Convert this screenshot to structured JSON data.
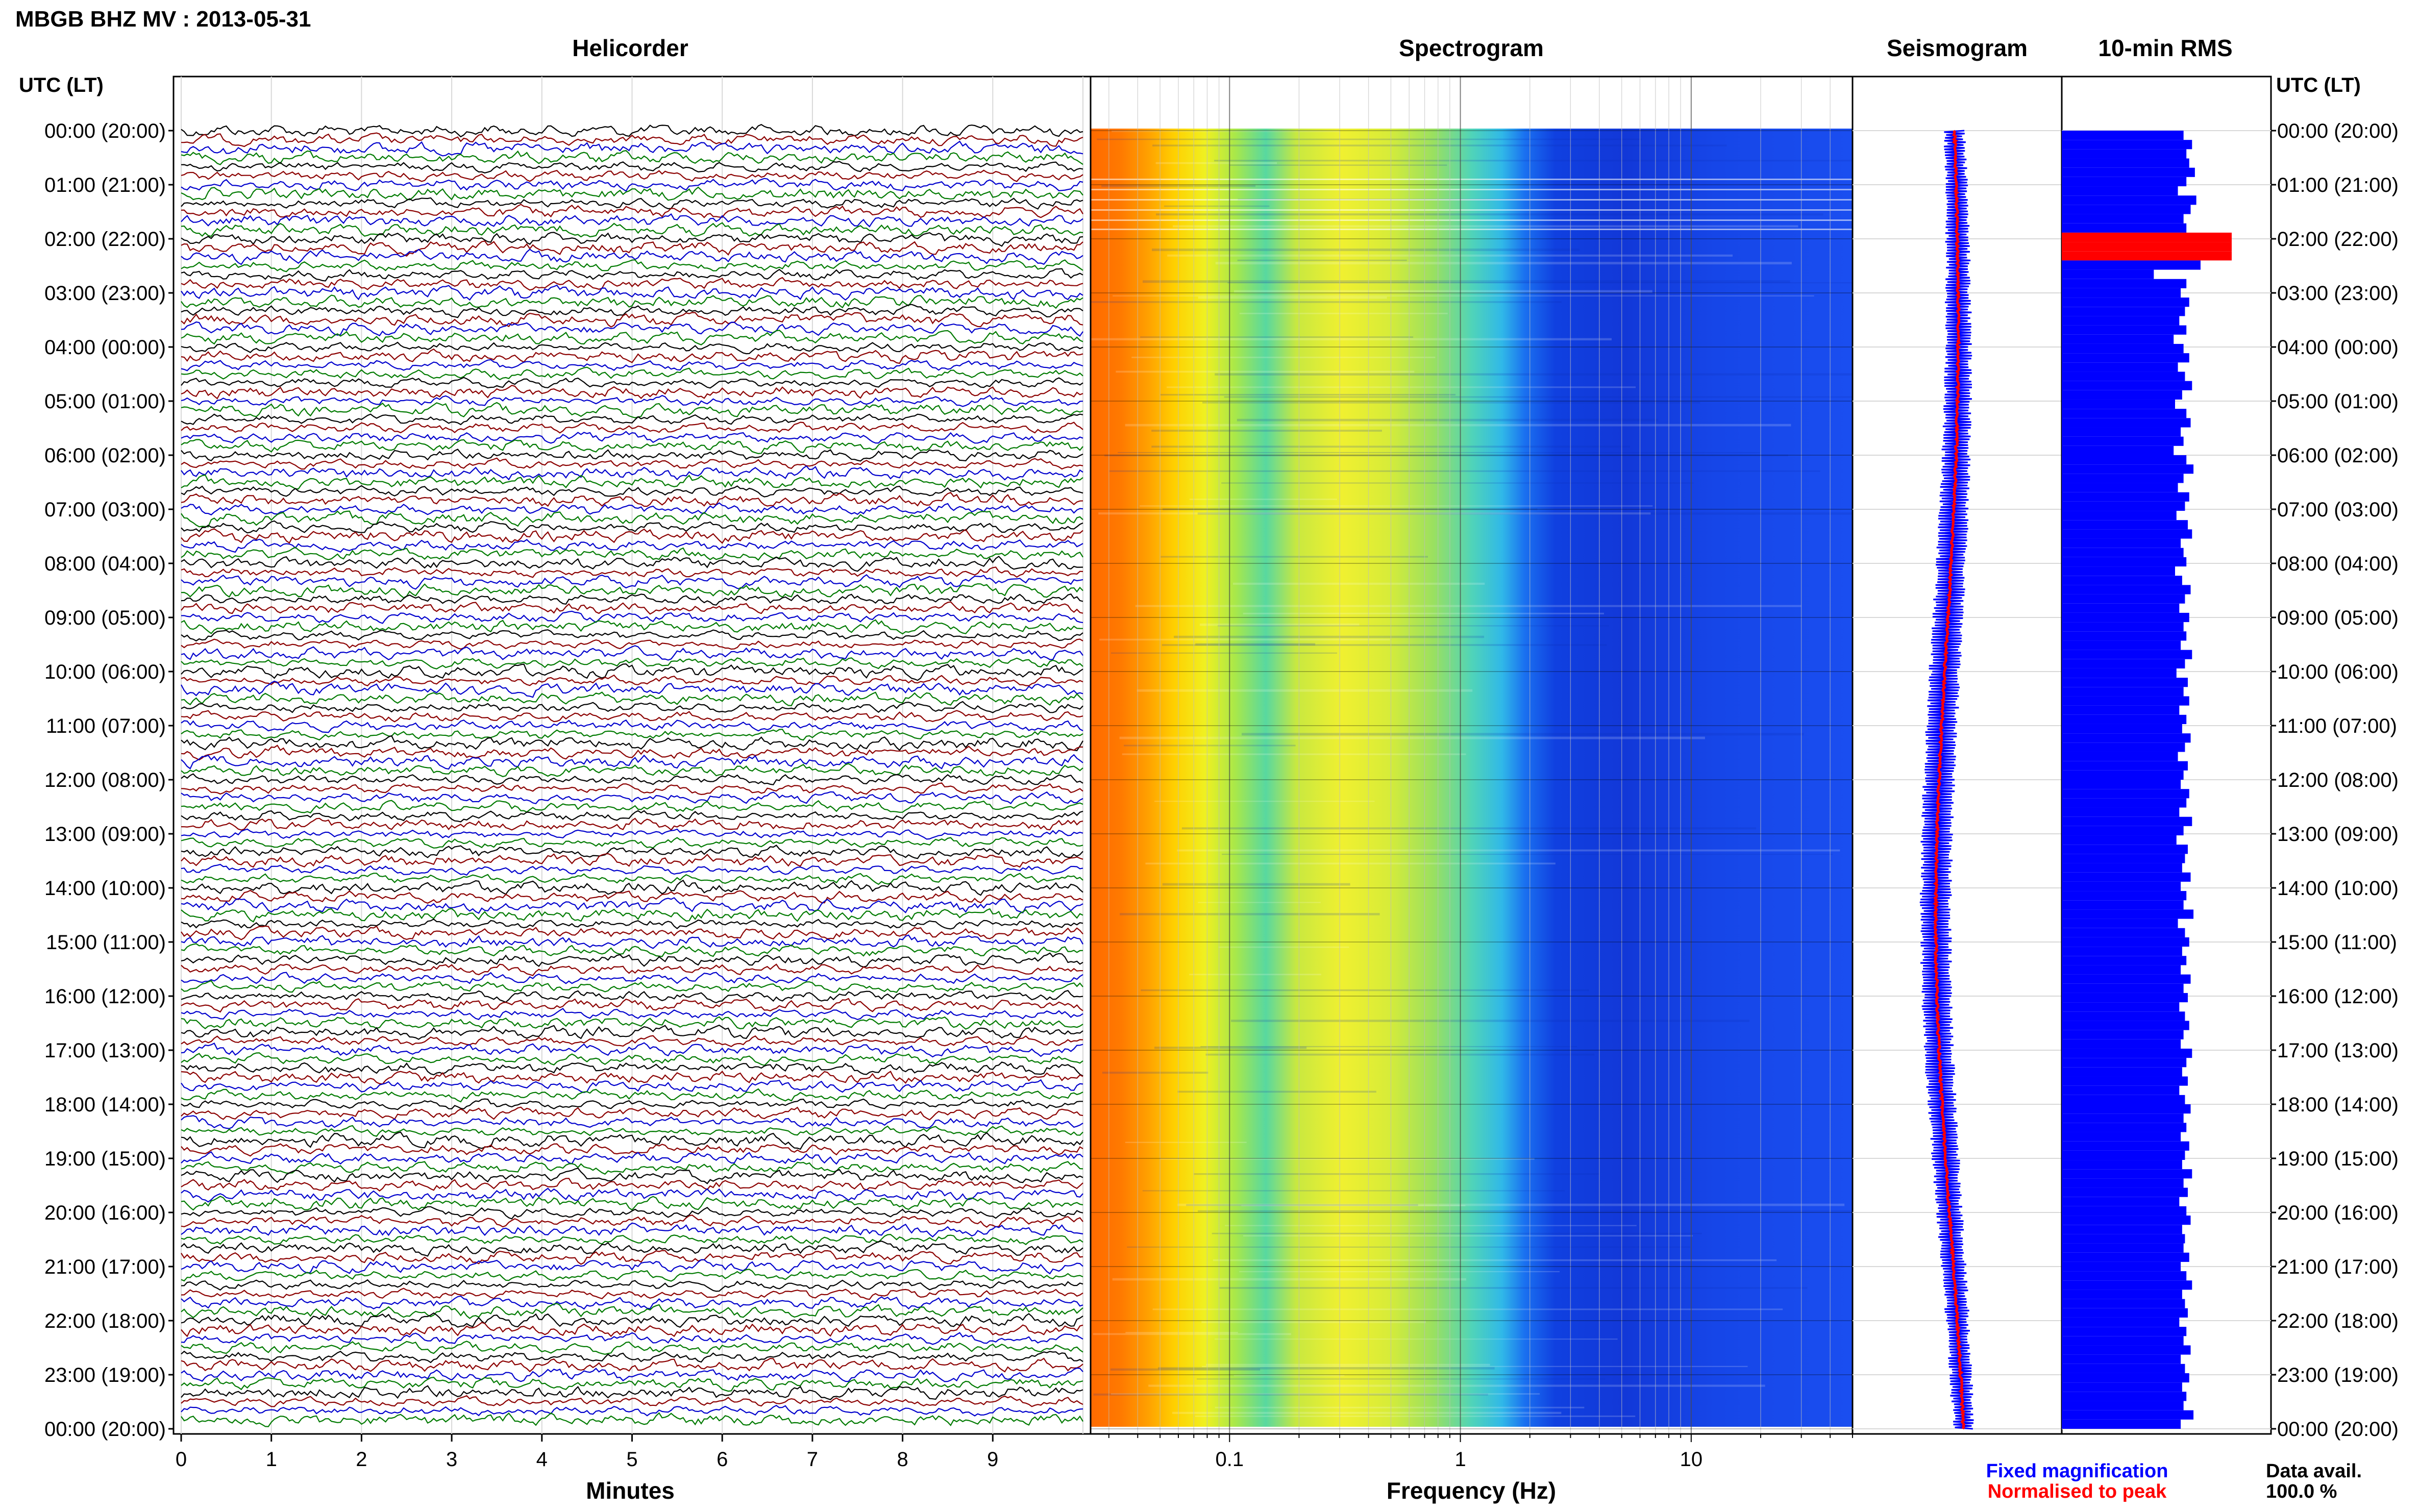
{
  "header": {
    "title": "MBGB BHZ MV : 2013-05-31"
  },
  "panels": {
    "helicorder": "Helicorder",
    "spectrogram": "Spectrogram",
    "seismogram": "Seismogram",
    "rms": "10-min RMS"
  },
  "axis": {
    "time_label": "UTC (LT)",
    "minutes_label": "Minutes",
    "frequency_label": "Frequency (Hz)"
  },
  "legend": {
    "fixed": "Fixed magnification",
    "normalised": "Normalised to peak",
    "fixed_color": "#0000ff",
    "normalised_color": "#ff0000"
  },
  "availability": {
    "label": "Data avail.",
    "value": "100.0 %"
  },
  "colors": {
    "helicorder_traces": [
      "#000000",
      "#8b0000",
      "#0000cd",
      "#007a00"
    ],
    "rms_bar": "#0000ff",
    "rms_peak": "#ff0000"
  },
  "chart_data": {
    "type": "table",
    "time_ticks": [
      "00:00 (20:00)",
      "01:00 (21:00)",
      "02:00 (22:00)",
      "03:00 (23:00)",
      "04:00 (00:00)",
      "05:00 (01:00)",
      "06:00 (02:00)",
      "07:00 (03:00)",
      "08:00 (04:00)",
      "09:00 (05:00)",
      "10:00 (06:00)",
      "11:00 (07:00)",
      "12:00 (08:00)",
      "13:00 (09:00)",
      "14:00 (10:00)",
      "15:00 (11:00)",
      "16:00 (12:00)",
      "17:00 (13:00)",
      "18:00 (14:00)",
      "19:00 (15:00)",
      "20:00 (16:00)",
      "21:00 (17:00)",
      "22:00 (18:00)",
      "23:00 (19:00)",
      "00:00 (20:00)"
    ],
    "minute_ticks": [
      "0",
      "1",
      "2",
      "3",
      "4",
      "5",
      "6",
      "7",
      "8",
      "9"
    ],
    "frequency_ticks": [
      {
        "value": 0.1,
        "label": "0.1"
      },
      {
        "value": 1,
        "label": "1"
      },
      {
        "value": 10,
        "label": "10"
      }
    ],
    "frequency_range": [
      0.025,
      50
    ],
    "minutes_range": [
      0,
      10
    ],
    "hours_range": [
      0,
      24
    ],
    "rms_scale": 1,
    "rms_values": [
      0.86,
      0.92,
      0.88,
      0.9,
      0.94,
      0.88,
      0.82,
      0.95,
      0.91,
      0.86,
      0.88,
      1.2,
      1.4,
      1.35,
      0.98,
      0.65,
      0.88,
      0.84,
      0.9,
      0.87,
      0.83,
      0.88,
      0.79,
      0.86,
      0.9,
      0.82,
      0.87,
      0.92,
      0.85,
      0.8,
      0.88,
      0.91,
      0.84,
      0.86,
      0.79,
      0.88,
      0.93,
      0.86,
      0.82,
      0.9,
      0.87,
      0.81,
      0.89,
      0.92,
      0.84,
      0.86,
      0.88,
      0.8,
      0.85,
      0.91,
      0.87,
      0.83,
      0.9,
      0.86,
      0.88,
      0.84,
      0.92,
      0.87,
      0.81,
      0.89,
      0.86,
      0.9,
      0.83,
      0.88,
      0.85,
      0.91,
      0.87,
      0.82,
      0.89,
      0.86,
      0.84,
      0.9,
      0.88,
      0.83,
      0.92,
      0.86,
      0.81,
      0.89,
      0.87,
      0.85,
      0.91,
      0.84,
      0.88,
      0.86,
      0.93,
      0.82,
      0.87,
      0.9,
      0.85,
      0.88,
      0.84,
      0.91,
      0.86,
      0.89,
      0.83,
      0.87,
      0.9,
      0.86,
      0.84,
      0.92,
      0.88,
      0.85,
      0.89,
      0.83,
      0.87,
      0.91,
      0.86,
      0.88,
      0.84,
      0.9,
      0.87,
      0.85,
      0.92,
      0.86,
      0.89,
      0.83,
      0.88,
      0.91,
      0.85,
      0.87,
      0.86,
      0.9,
      0.84,
      0.88,
      0.92,
      0.85,
      0.87,
      0.89,
      0.83,
      0.88,
      0.86,
      0.91,
      0.84,
      0.87,
      0.9,
      0.85,
      0.88,
      0.86,
      0.93,
      0.84
    ]
  }
}
